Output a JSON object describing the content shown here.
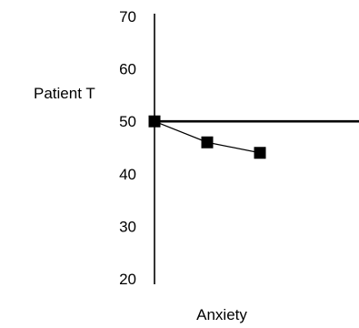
{
  "chart_data": {
    "type": "line",
    "title": "",
    "ylabel": "Patient T",
    "xlabel": "Anxiety",
    "ylim": [
      20,
      70
    ],
    "yticks": [
      20,
      30,
      40,
      50,
      60,
      70
    ],
    "reference_line": 50,
    "grid": false,
    "series": [
      {
        "values": [
          50,
          46,
          44
        ]
      }
    ],
    "colors": {
      "line": "#000000",
      "marker": "#000000",
      "axis": "#000000",
      "reference": "#000000"
    }
  }
}
